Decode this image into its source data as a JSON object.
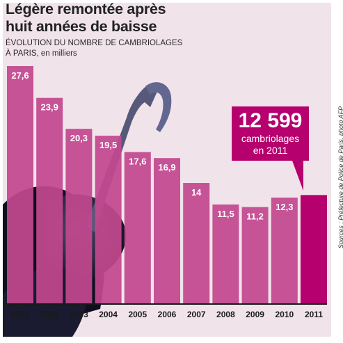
{
  "title_line1": "Légère remontée après",
  "title_line2": "huit années de baisse",
  "subtitle_line1": "ÉVOLUTION DU NOMBRE DE CAMBRIOLAGES",
  "subtitle_line2": "À PARIS, en milliers",
  "callout": {
    "value": "12 599",
    "line1": "cambriolages",
    "line2": "en 2011"
  },
  "source": "Sources : Préfecture de Police de Paris, photo AFP",
  "colors": {
    "bar": "#c2488e",
    "bar_highlight": "#b5006e",
    "axis": "#1a1a1a",
    "background": "#f1e3ea"
  },
  "chart_data": {
    "type": "bar",
    "title": "Légère remontée après huit années de baisse",
    "subtitle": "ÉVOLUTION DU NOMBRE DE CAMBRIOLAGES À PARIS, en milliers",
    "categories": [
      "2001",
      "2002",
      "2003",
      "2004",
      "2005",
      "2006",
      "2007",
      "2008",
      "2009",
      "2010",
      "2011"
    ],
    "values": [
      27.6,
      23.9,
      20.3,
      19.5,
      17.6,
      16.9,
      14,
      11.5,
      11.2,
      12.3,
      12.599
    ],
    "labels": [
      "27,6",
      "23,9",
      "20,3",
      "19,5",
      "17,6",
      "16,9",
      "14",
      "11,5",
      "11,2",
      "12,3",
      ""
    ],
    "ylim": [
      0,
      27.6
    ],
    "grid": false,
    "highlight": "2011"
  }
}
